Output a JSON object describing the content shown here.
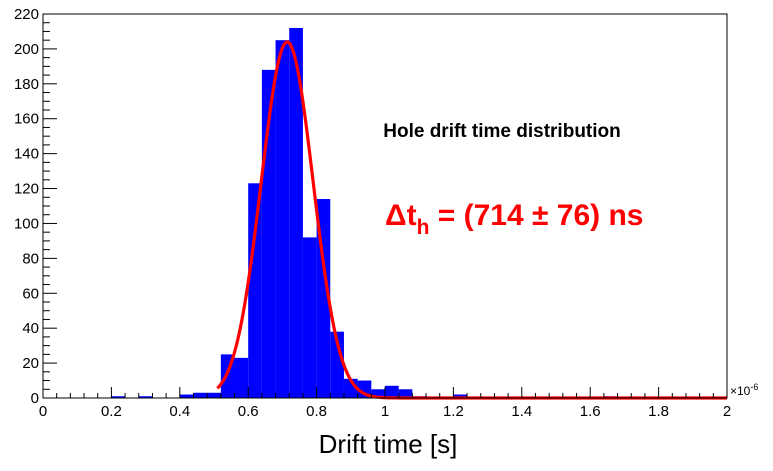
{
  "chart_data": {
    "type": "bar",
    "title": "",
    "xlabel": "Drift time [s]",
    "ylabel": "",
    "x_exponent_label": "×10",
    "x_exponent_power": "-6",
    "xlim": [
      0,
      2
    ],
    "ylim": [
      0,
      220
    ],
    "x_ticks": [
      0,
      0.2,
      0.4,
      0.6,
      0.8,
      1,
      1.2,
      1.4,
      1.6,
      1.8,
      2
    ],
    "x_tick_labels": [
      "0",
      "0.2",
      "0.4",
      "0.6",
      "0.8",
      "1",
      "1.2",
      "1.4",
      "1.6",
      "1.8",
      "2"
    ],
    "y_ticks": [
      0,
      20,
      40,
      60,
      80,
      100,
      120,
      140,
      160,
      180,
      200,
      220
    ],
    "y_tick_labels": [
      "0",
      "20",
      "40",
      "60",
      "80",
      "100",
      "120",
      "140",
      "160",
      "180",
      "200",
      "220"
    ],
    "grid": false,
    "bin_width": 0.04,
    "histogram": [
      {
        "x0": 0.2,
        "value": 1
      },
      {
        "x0": 0.28,
        "value": 1
      },
      {
        "x0": 0.4,
        "value": 2
      },
      {
        "x0": 0.44,
        "value": 3
      },
      {
        "x0": 0.48,
        "value": 3
      },
      {
        "x0": 0.52,
        "value": 25
      },
      {
        "x0": 0.56,
        "value": 23
      },
      {
        "x0": 0.6,
        "value": 123
      },
      {
        "x0": 0.64,
        "value": 188
      },
      {
        "x0": 0.68,
        "value": 205
      },
      {
        "x0": 0.72,
        "value": 212
      },
      {
        "x0": 0.76,
        "value": 92
      },
      {
        "x0": 0.8,
        "value": 114
      },
      {
        "x0": 0.84,
        "value": 38
      },
      {
        "x0": 0.88,
        "value": 11
      },
      {
        "x0": 0.92,
        "value": 10
      },
      {
        "x0": 0.96,
        "value": 5
      },
      {
        "x0": 1.0,
        "value": 7
      },
      {
        "x0": 1.04,
        "value": 5
      },
      {
        "x0": 1.08,
        "value": 1
      },
      {
        "x0": 1.2,
        "value": 2
      },
      {
        "x0": 1.64,
        "value": 1
      }
    ],
    "fit": {
      "type": "gaussian",
      "mean": 0.714,
      "sigma": 0.076,
      "amplitude": 204,
      "x_start": 0.51,
      "x_end": 2.0,
      "color": "#ff0000"
    },
    "bar_color": "#0000ff",
    "annotations": {
      "title": "Hole drift time distribution",
      "result_delta": "Δ",
      "result_t": "t",
      "result_sub": "h",
      "result_value": " = (714 ± 76) ns",
      "result_color": "#ff0000"
    }
  }
}
